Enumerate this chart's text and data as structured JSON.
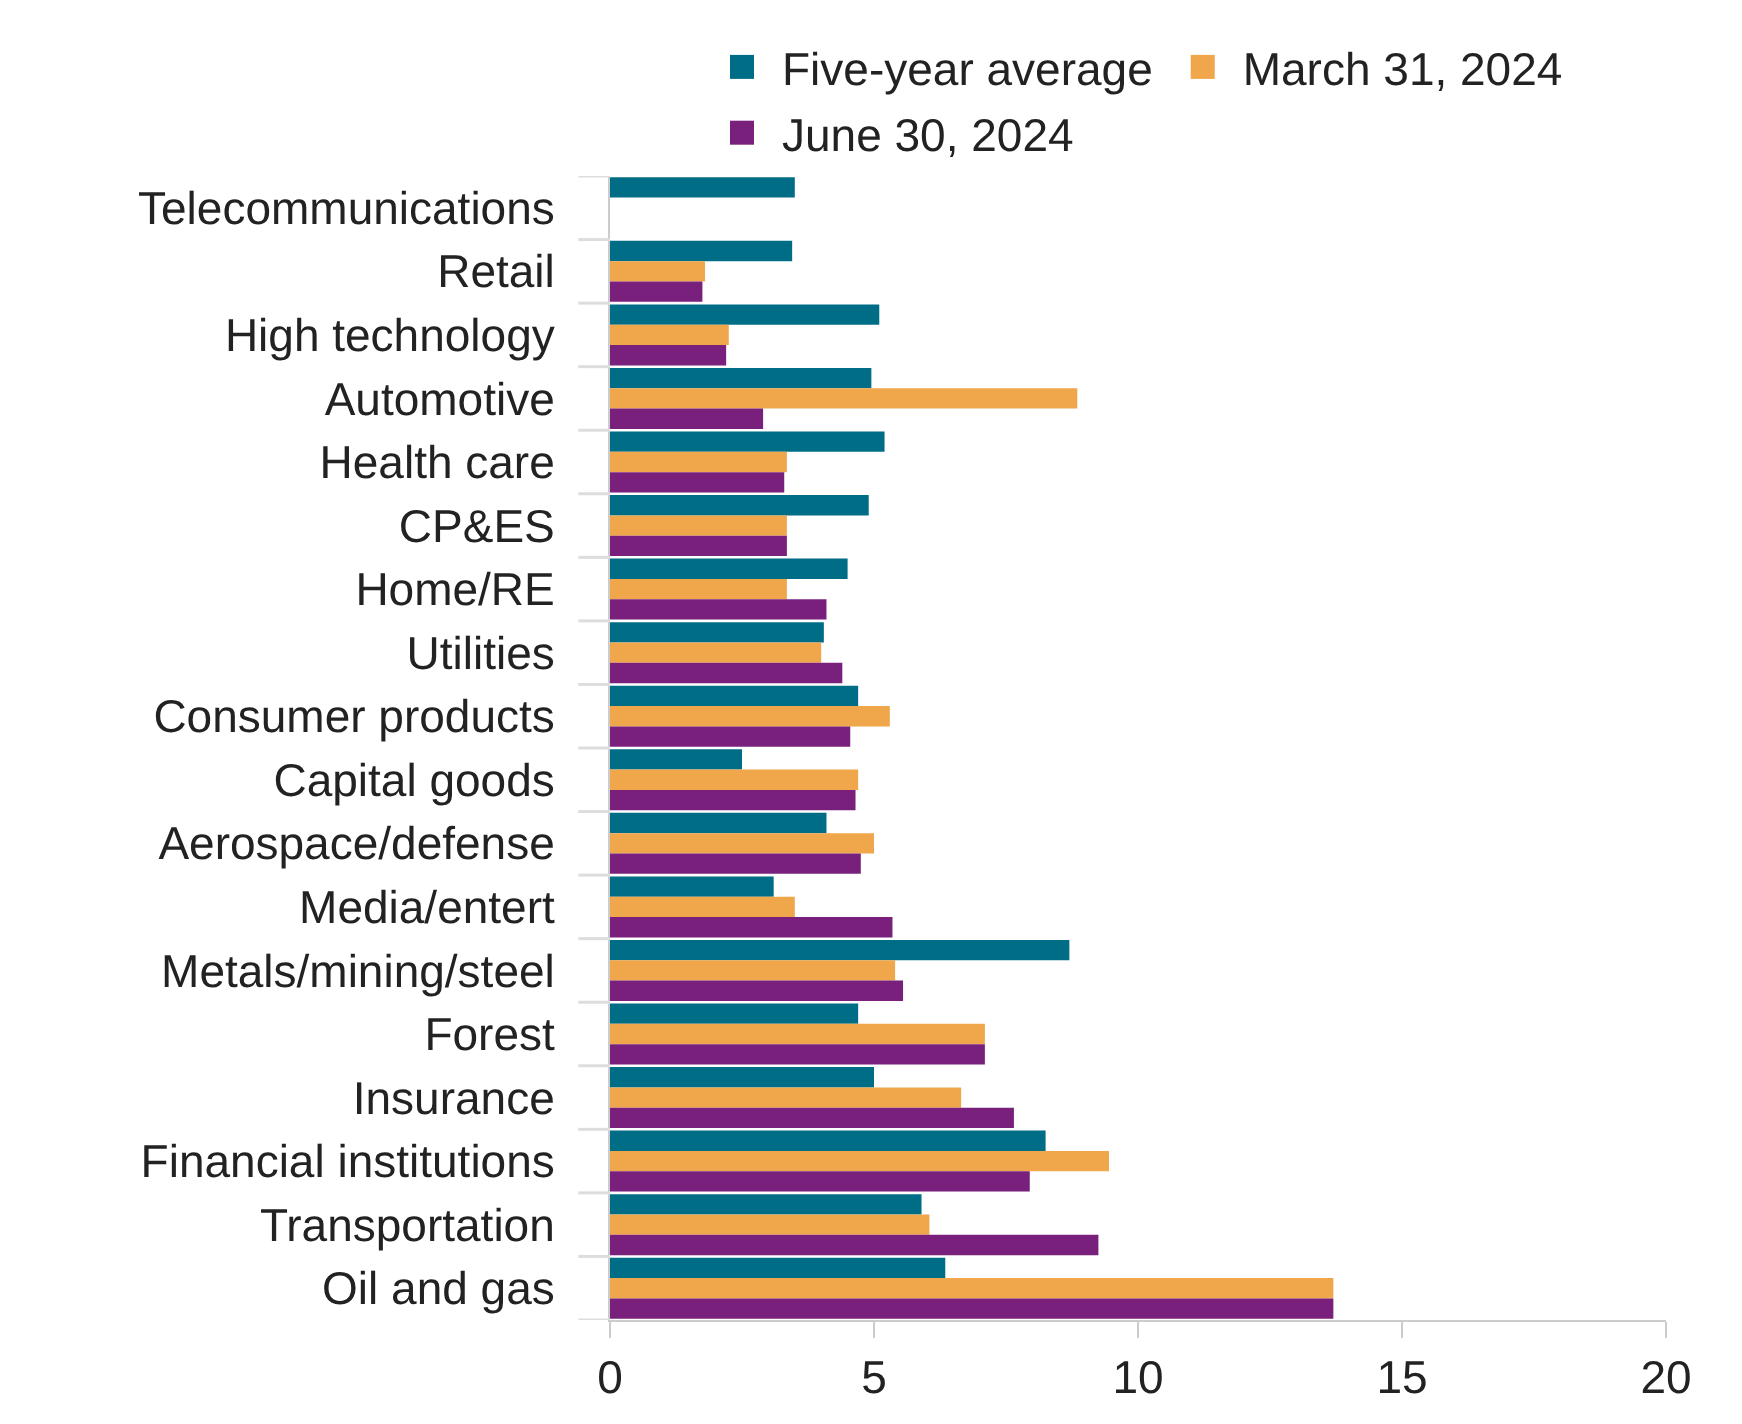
{
  "chart_data": {
    "type": "bar",
    "orientation": "horizontal",
    "categories": [
      "Telecommunications",
      "Retail",
      "High technology",
      "Automotive",
      "Health care",
      "CP&ES",
      "Home/RE",
      "Utilities",
      "Consumer products",
      "Capital goods",
      "Aerospace/defense",
      "Media/entert",
      "Metals/mining/steel",
      "Forest",
      "Insurance",
      "Financial institutions",
      "Transportation",
      "Oil and gas"
    ],
    "series": [
      {
        "name": "Five-year average",
        "color": "#006d87",
        "values": [
          3.5,
          3.45,
          5.1,
          4.95,
          5.2,
          4.9,
          4.5,
          4.05,
          4.7,
          2.5,
          4.1,
          3.1,
          8.7,
          4.7,
          5.0,
          8.25,
          5.9,
          6.35
        ]
      },
      {
        "name": "March 31, 2024",
        "color": "#f0a64a",
        "values": [
          null,
          1.8,
          2.25,
          8.85,
          3.35,
          3.35,
          3.35,
          4.0,
          5.3,
          4.7,
          5.0,
          3.5,
          5.4,
          7.1,
          6.65,
          9.45,
          6.05,
          13.7
        ]
      },
      {
        "name": "June 30, 2024",
        "color": "#78207c",
        "values": [
          null,
          1.75,
          2.2,
          2.9,
          3.3,
          3.35,
          4.1,
          4.4,
          4.55,
          4.65,
          4.75,
          5.35,
          5.55,
          7.1,
          7.65,
          7.95,
          9.25,
          13.7
        ]
      }
    ],
    "xlim": [
      0,
      20
    ],
    "xticks": [
      0,
      5,
      10,
      15,
      20
    ],
    "grid": false,
    "legend": "top"
  }
}
